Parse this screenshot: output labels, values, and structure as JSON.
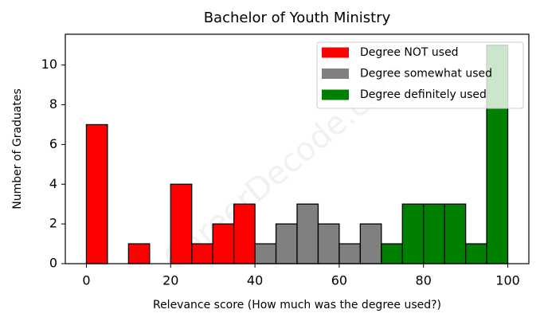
{
  "chart_data": {
    "type": "histogram",
    "title": "Bachelor of Youth Ministry",
    "x_label": "Relevance score (How much was the degree used?)",
    "y_label": "Number of Graduates",
    "watermark": "CareerDecode.com",
    "xlim": [
      -5,
      105
    ],
    "ylim": [
      0,
      11.55
    ],
    "xticks": [
      0,
      20,
      40,
      60,
      80,
      100
    ],
    "yticks": [
      0,
      2,
      4,
      6,
      8,
      10
    ],
    "legend": "upper right",
    "grid": false,
    "series": [
      {
        "name": "Degree NOT used",
        "color": "#ff0000",
        "bins": [
          0,
          5,
          10,
          15,
          20,
          25,
          30,
          35,
          40
        ],
        "values": [
          7,
          0,
          1,
          0,
          4,
          1,
          2,
          3
        ]
      },
      {
        "name": "Degree somewhat used",
        "color": "#808080",
        "bins": [
          40,
          45,
          50,
          55,
          60,
          65,
          70
        ],
        "values": [
          1,
          2,
          3,
          2,
          1,
          2
        ]
      },
      {
        "name": "Degree definitely used",
        "color": "#008000",
        "bins": [
          70,
          75,
          80,
          85,
          90,
          95,
          100
        ],
        "values": [
          1,
          3,
          3,
          3,
          1,
          11
        ]
      }
    ]
  }
}
